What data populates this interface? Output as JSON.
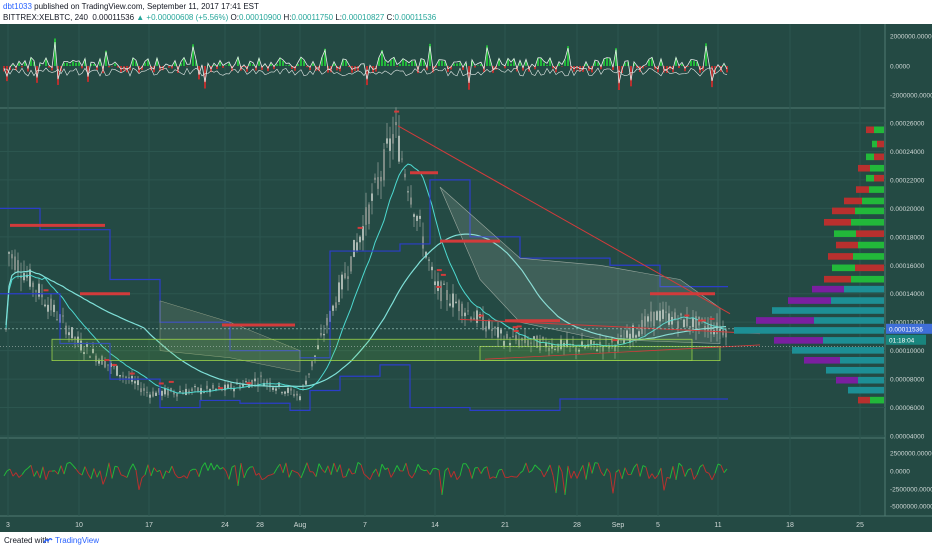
{
  "header": {
    "author": "dbt1033",
    "published_text": "published on TradingView.com, September 11, 2017 17:41 EST",
    "symbol": "BITTREX:XELBTC, 240",
    "last": "0.00011536",
    "change": "▲ +0.00000608 (+5.56%)",
    "o_label": "O:",
    "o": "0.00010900",
    "h_label": "H:",
    "h": "0.00011750",
    "l_label": "L:",
    "l": "0.00010827",
    "c_label": "C:",
    "c": "0.00011536"
  },
  "footer": {
    "created_with": "Created with",
    "brand": "TradingView",
    "brand_icon": "tradingview-logo-icon"
  },
  "colors": {
    "background": "#244a44",
    "candle": "#8c9a94",
    "cyan_line": "#4dd9d0",
    "blue_line": "#2b3ec9",
    "trend": "#d23b3b",
    "bull": "#22b83a",
    "bear": "#b8302e",
    "profile_cyan": "#1d8f95",
    "profile_purple": "#7a1fa0",
    "label_blue": "#3f6ed8",
    "label_teal": "#19857d"
  },
  "price_axis": {
    "labels": [
      "0.00026000",
      "0.00024000",
      "0.00022000",
      "0.00020000",
      "0.00018000",
      "0.00016000",
      "0.00014000",
      "0.00012000",
      "0.00010000",
      "0.00008000",
      "0.00006000",
      "0.00004000"
    ],
    "current_price": "0.00011536",
    "countdown": "01:18:04"
  },
  "top_axis": {
    "labels": [
      "2000000.0000",
      "0.0000",
      "-2000000.0000"
    ]
  },
  "bottom_axis": {
    "labels": [
      "2500000.0000",
      "0.0000",
      "-2500000.0000",
      "-5000000.0000"
    ]
  },
  "time_axis": {
    "labels": [
      "3",
      "10",
      "17",
      "24",
      "28",
      "Aug",
      "7",
      "14",
      "21",
      "28",
      "Sep",
      "5",
      "11",
      "18",
      "25"
    ]
  },
  "chart_data": {
    "type": "line",
    "title": "BITTREX:XELBTC, 240",
    "x": [
      "Jul 3",
      "Jul 10",
      "Jul 17",
      "Jul 24",
      "Jul 28",
      "Aug 1",
      "Aug 7",
      "Aug 10",
      "Aug 14",
      "Aug 21",
      "Aug 28",
      "Sep 1",
      "Sep 5",
      "Sep 11"
    ],
    "series": [
      {
        "values": [
          0.00017,
          0.000105,
          7e-05,
          7.3e-05,
          8e-05,
          6.8e-05,
          0.00019,
          0.000255,
          0.000145,
          0.000108,
          0.000102,
          0.000105,
          0.000125,
          0.000115
        ]
      }
    ],
    "ylim": [
      4e-05,
      0.00027
    ]
  }
}
